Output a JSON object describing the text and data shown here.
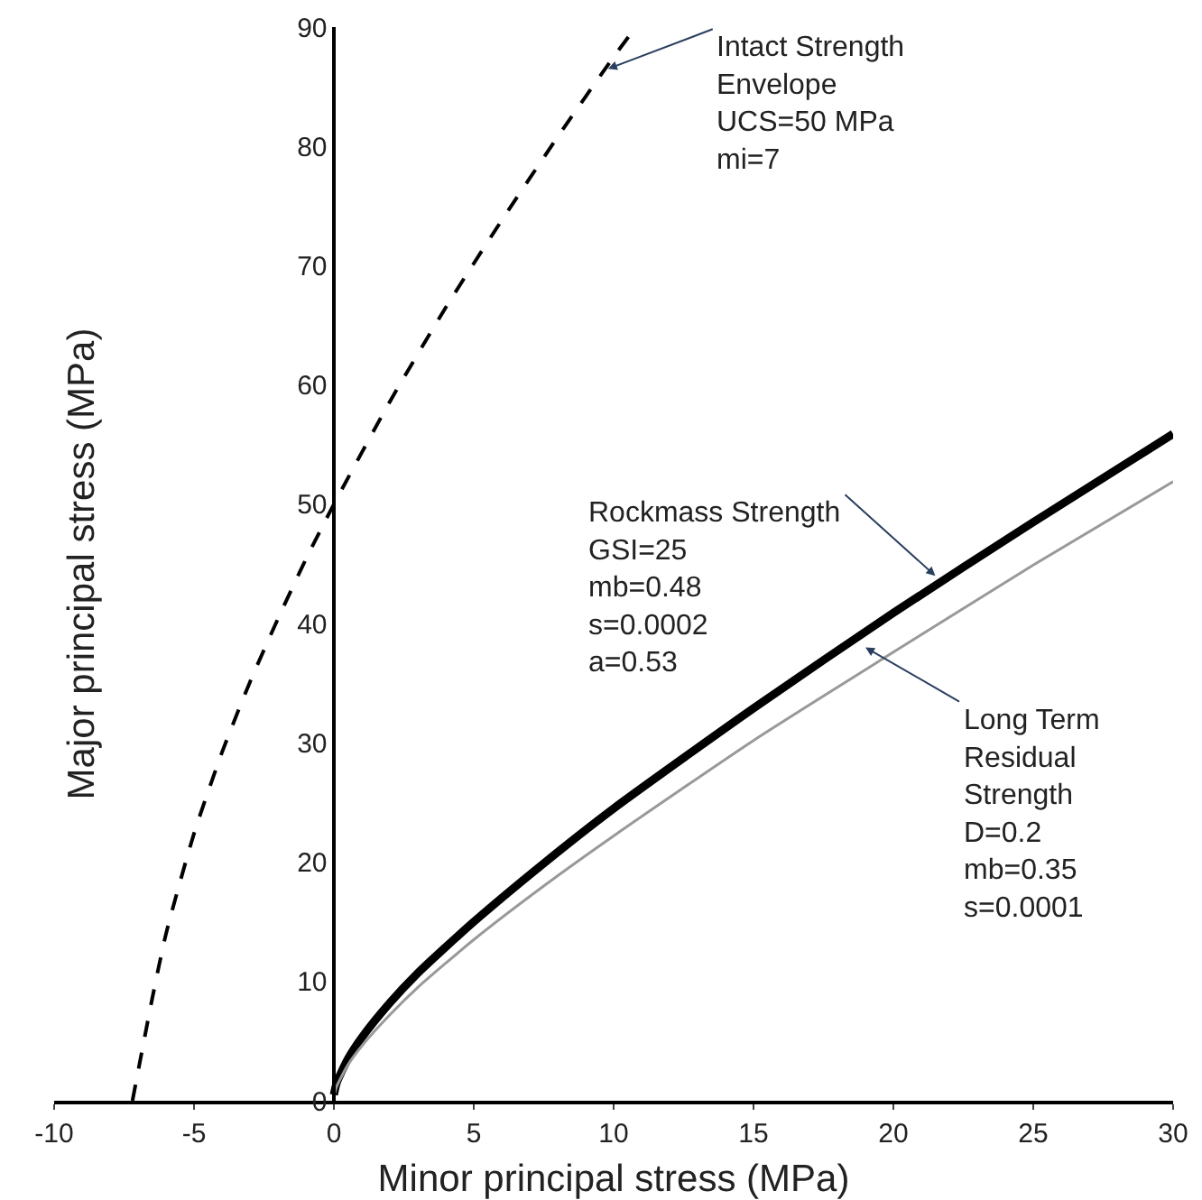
{
  "chart_data": {
    "type": "line",
    "xlabel": "Minor principal stress (MPa)",
    "ylabel": "Major principal stress (MPa)",
    "xlim": [
      -10,
      30
    ],
    "xticks": [
      -10,
      -5,
      0,
      5,
      10,
      15,
      20,
      25,
      30
    ],
    "ylim": [
      0,
      90
    ],
    "yticks": [
      0,
      10,
      20,
      30,
      40,
      50,
      60,
      70,
      80,
      90
    ],
    "series": [
      {
        "color": "#000000",
        "line_style": "dashed",
        "x": [
          -7.2,
          -6.5,
          -6,
          -5,
          -4,
          -3,
          -2,
          -1,
          0,
          2,
          4,
          6,
          8,
          10,
          10.7
        ],
        "values": [
          0,
          8.5,
          14,
          22.4,
          29.2,
          35.1,
          40.4,
          45.4,
          50,
          58.6,
          66.5,
          73.8,
          80.8,
          87.5,
          89.7
        ]
      },
      {
        "color": "#000000",
        "line_style": "solid",
        "x": [
          0,
          0.1,
          0.5,
          1,
          2,
          3,
          5,
          7.5,
          10,
          15,
          20,
          25,
          30
        ],
        "values": [
          0.5,
          1.5,
          3.5,
          5.3,
          8.2,
          10.7,
          15,
          19.9,
          24.5,
          32.9,
          40.9,
          48.5,
          55.9
        ]
      },
      {
        "color": "#999999",
        "line_style": "solid",
        "x": [
          0,
          0.1,
          0.5,
          1,
          2,
          3,
          5,
          7.5,
          10,
          15,
          20,
          25,
          30
        ],
        "values": [
          0.4,
          1.2,
          3,
          4.6,
          7.2,
          9.5,
          13.5,
          18,
          22.2,
          30.2,
          37.6,
          44.9,
          51.9
        ]
      }
    ],
    "annotations": [
      {
        "text": "Intact Strength\nEnvelope\nUCS=50 MPa\nmi=7",
        "x": 9.8,
        "y": 86.5
      },
      {
        "text": "Rockmass Strength\nGSI=25\nmb=0.48\ns=0.0002\na=0.53",
        "x": 21.5,
        "y": 44
      },
      {
        "text": "Long Term\nResidual\nStrength\nD=0.2\nmb=0.35\ns=0.0001",
        "x": 19,
        "y": 38
      }
    ]
  }
}
